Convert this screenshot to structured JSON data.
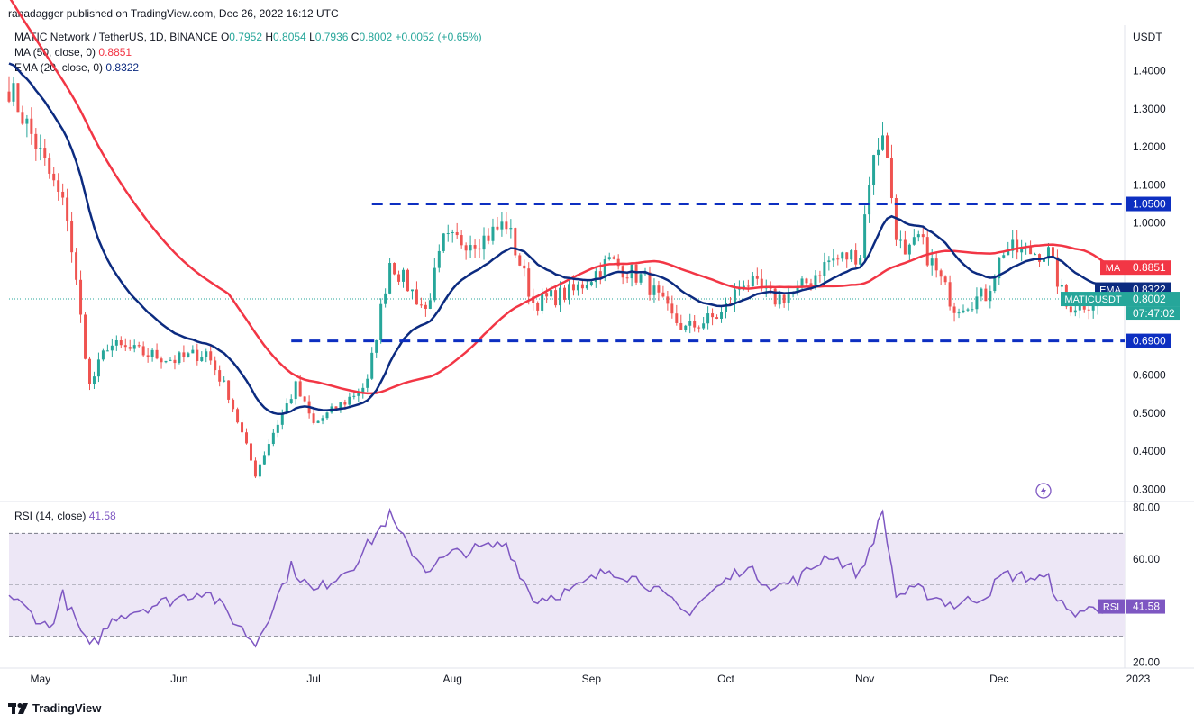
{
  "publisher": "ranadagger published on TradingView.com, Dec 26, 2022 16:12 UTC",
  "legend": {
    "symbol": "MATIC Network / TetherUS, 1D, BINANCE",
    "o_label": "O",
    "o": "0.7952",
    "h_label": "H",
    "h": "0.8054",
    "l_label": "L",
    "l": "0.7936",
    "c_label": "C",
    "c": "0.8002",
    "change": "+0.0052 (+0.65%)",
    "ma_label": "MA (50, close, 0)",
    "ma_value": "0.8851",
    "ema_label": "EMA (20, close, 0)",
    "ema_value": "0.8322",
    "rsi_label": "RSI (14, close)",
    "rsi_value": "41.58"
  },
  "brand": "TradingView",
  "colors": {
    "up": "#26a69a",
    "down": "#ef5350",
    "ma": "#f23645",
    "ema": "#0c2b80",
    "rsi": "#7e57c2",
    "level": "#0d2fc1",
    "band": "#ede7f6"
  },
  "chart_data": [
    {
      "type": "candlestick",
      "title": "MATIC Network / TetherUS, 1D, BINANCE",
      "y_axis_title": "USDT",
      "ylim": [
        0.27,
        1.52
      ],
      "y_ticks": [
        0.3,
        0.4,
        0.5,
        0.6,
        0.7,
        0.8,
        0.9,
        1.0,
        1.1,
        1.2,
        1.3,
        1.4
      ],
      "y_tick_labels": [
        "0.3000",
        "0.4000",
        "0.5000",
        "0.6000",
        "",
        "",
        "",
        "1.0000",
        "1.1000",
        "1.2000",
        "1.3000",
        "1.4000"
      ],
      "x_range": [
        "2022-04-24",
        "2022-12-29"
      ],
      "x_ticks": [
        {
          "label": "May",
          "date": "2022-05-01"
        },
        {
          "label": "Jun",
          "date": "2022-06-01"
        },
        {
          "label": "Jul",
          "date": "2022-07-01"
        },
        {
          "label": "Aug",
          "date": "2022-08-01"
        },
        {
          "label": "Sep",
          "date": "2022-09-01"
        },
        {
          "label": "Oct",
          "date": "2022-10-01"
        },
        {
          "label": "Nov",
          "date": "2022-11-01"
        },
        {
          "label": "Dec",
          "date": "2022-12-01"
        },
        {
          "label": "2023",
          "date": "2023-01-01"
        }
      ],
      "key_points": [
        {
          "date": "2022-04-24",
          "close": 1.36
        },
        {
          "date": "2022-05-01",
          "close": 1.18
        },
        {
          "date": "2022-05-07",
          "close": 1.02
        },
        {
          "date": "2022-05-12",
          "close": 0.57
        },
        {
          "date": "2022-05-16",
          "close": 0.68
        },
        {
          "date": "2022-05-23",
          "close": 0.66
        },
        {
          "date": "2022-05-31",
          "close": 0.64
        },
        {
          "date": "2022-06-07",
          "close": 0.66
        },
        {
          "date": "2022-06-12",
          "close": 0.55
        },
        {
          "date": "2022-06-18",
          "close": 0.34
        },
        {
          "date": "2022-06-22",
          "close": 0.45
        },
        {
          "date": "2022-06-27",
          "close": 0.57
        },
        {
          "date": "2022-07-01",
          "close": 0.47
        },
        {
          "date": "2022-07-08",
          "close": 0.53
        },
        {
          "date": "2022-07-13",
          "close": 0.58
        },
        {
          "date": "2022-07-18",
          "close": 0.9
        },
        {
          "date": "2022-07-26",
          "close": 0.77
        },
        {
          "date": "2022-07-30",
          "close": 0.95
        },
        {
          "date": "2022-08-08",
          "close": 0.96
        },
        {
          "date": "2022-08-13",
          "close": 1.0
        },
        {
          "date": "2022-08-19",
          "close": 0.79
        },
        {
          "date": "2022-08-28",
          "close": 0.82
        },
        {
          "date": "2022-09-05",
          "close": 0.9
        },
        {
          "date": "2022-09-13",
          "close": 0.85
        },
        {
          "date": "2022-09-19",
          "close": 0.75
        },
        {
          "date": "2022-09-22",
          "close": 0.72
        },
        {
          "date": "2022-09-30",
          "close": 0.76
        },
        {
          "date": "2022-10-05",
          "close": 0.85
        },
        {
          "date": "2022-10-12",
          "close": 0.8
        },
        {
          "date": "2022-10-17",
          "close": 0.82
        },
        {
          "date": "2022-10-24",
          "close": 0.9
        },
        {
          "date": "2022-10-31",
          "close": 0.92
        },
        {
          "date": "2022-11-02",
          "close": 1.12
        },
        {
          "date": "2022-11-05",
          "close": 1.25
        },
        {
          "date": "2022-11-08",
          "close": 0.98
        },
        {
          "date": "2022-11-10",
          "close": 0.9
        },
        {
          "date": "2022-11-13",
          "close": 0.96
        },
        {
          "date": "2022-11-21",
          "close": 0.78
        },
        {
          "date": "2022-11-28",
          "close": 0.81
        },
        {
          "date": "2022-12-02",
          "close": 0.93
        },
        {
          "date": "2022-12-12",
          "close": 0.92
        },
        {
          "date": "2022-12-16",
          "close": 0.78
        },
        {
          "date": "2022-12-26",
          "close": 0.8002
        }
      ],
      "series": [
        {
          "name": "MA",
          "last": 0.8851
        },
        {
          "name": "EMA",
          "last": 0.8322
        }
      ],
      "levels": [
        {
          "value": 1.05,
          "label": "1.0500",
          "from": "2022-07-14",
          "to": "2022-12-29"
        },
        {
          "value": 0.69,
          "label": "0.6900",
          "from": "2022-06-26",
          "to": "2022-12-29"
        }
      ],
      "price_tags": [
        {
          "series": "MA",
          "label": "MA",
          "value": "0.8851"
        },
        {
          "series": "EMA",
          "label": "EMA",
          "value": "0.8322"
        },
        {
          "series": "last",
          "label": "MATICUSDT",
          "value": "0.8002",
          "countdown": "07:47:02"
        }
      ]
    },
    {
      "type": "line",
      "title": "RSI (14, close)",
      "ylim": [
        18,
        82
      ],
      "y_ticks": [
        20,
        60,
        80
      ],
      "y_tick_labels": [
        "20.00",
        "60.00",
        "80.00"
      ],
      "band": [
        30,
        70
      ],
      "midline": 50,
      "key_points": [
        {
          "date": "2022-04-24",
          "value": 46
        },
        {
          "date": "2022-05-03",
          "value": 33
        },
        {
          "date": "2022-05-06",
          "value": 46
        },
        {
          "date": "2022-05-12",
          "value": 25
        },
        {
          "date": "2022-05-18",
          "value": 38
        },
        {
          "date": "2022-05-28",
          "value": 43
        },
        {
          "date": "2022-06-07",
          "value": 48
        },
        {
          "date": "2022-06-18",
          "value": 27
        },
        {
          "date": "2022-06-26",
          "value": 57
        },
        {
          "date": "2022-07-01",
          "value": 47
        },
        {
          "date": "2022-07-10",
          "value": 58
        },
        {
          "date": "2022-07-18",
          "value": 77
        },
        {
          "date": "2022-07-20",
          "value": 70
        },
        {
          "date": "2022-07-26",
          "value": 56
        },
        {
          "date": "2022-08-01",
          "value": 62
        },
        {
          "date": "2022-08-13",
          "value": 66
        },
        {
          "date": "2022-08-19",
          "value": 44
        },
        {
          "date": "2022-08-28",
          "value": 48
        },
        {
          "date": "2022-09-05",
          "value": 56
        },
        {
          "date": "2022-09-13",
          "value": 51
        },
        {
          "date": "2022-09-22",
          "value": 39
        },
        {
          "date": "2022-10-05",
          "value": 57
        },
        {
          "date": "2022-10-12",
          "value": 49
        },
        {
          "date": "2022-10-17",
          "value": 52
        },
        {
          "date": "2022-10-24",
          "value": 62
        },
        {
          "date": "2022-10-31",
          "value": 54
        },
        {
          "date": "2022-11-05",
          "value": 78
        },
        {
          "date": "2022-11-08",
          "value": 46
        },
        {
          "date": "2022-11-13",
          "value": 48
        },
        {
          "date": "2022-11-21",
          "value": 42
        },
        {
          "date": "2022-11-28",
          "value": 46
        },
        {
          "date": "2022-12-02",
          "value": 54
        },
        {
          "date": "2022-12-12",
          "value": 52
        },
        {
          "date": "2022-12-16",
          "value": 39
        },
        {
          "date": "2022-12-26",
          "value": 41.58
        }
      ],
      "series": [
        {
          "name": "RSI",
          "last": 41.58
        }
      ]
    }
  ]
}
